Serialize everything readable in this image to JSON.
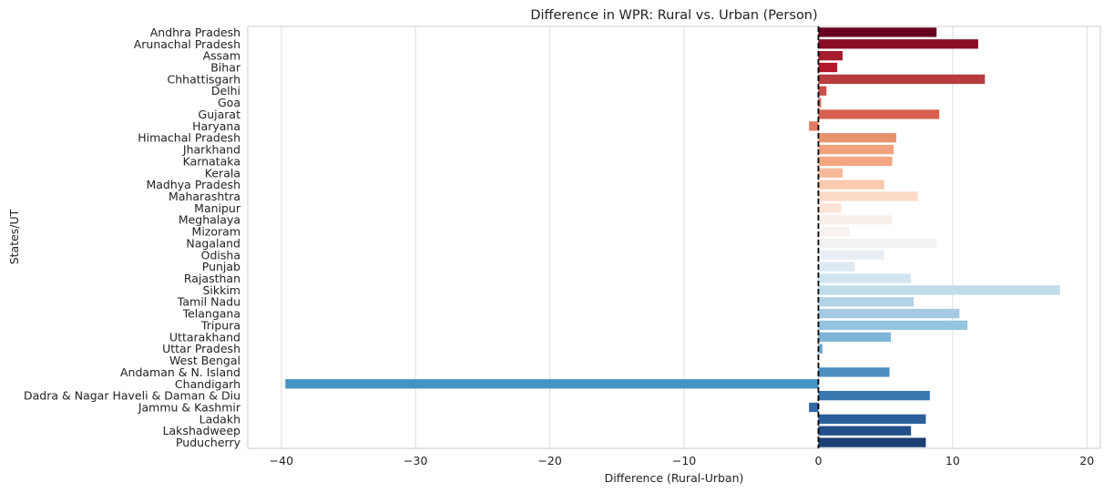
{
  "chart_data": {
    "type": "bar",
    "orientation": "horizontal",
    "title": "Difference in WPR: Rural vs. Urban (Person)",
    "xlabel": "Difference (Rural-Urban)",
    "ylabel": "States/UT",
    "xlim": [
      -42.5,
      21
    ],
    "xticks": [
      -40,
      -30,
      -20,
      -10,
      0,
      10,
      20
    ],
    "xtick_labels": [
      "−40",
      "−30",
      "−20",
      "−10",
      "0",
      "10",
      "20"
    ],
    "grid": "vertical",
    "reference_line": {
      "x": 0,
      "style": "dashed",
      "color": "#000000"
    },
    "colormap": "RdBu",
    "categories": [
      "Andhra Pradesh",
      "Arunachal Pradesh",
      "Assam",
      "Bihar",
      "Chhattisgarh",
      "Delhi",
      "Goa",
      "Gujarat",
      "Haryana",
      "Himachal Pradesh",
      "Jharkhand",
      "Karnataka",
      "Kerala",
      "Madhya Pradesh",
      "Maharashtra",
      "Manipur",
      "Meghalaya",
      "Mizoram",
      "Nagaland",
      "Odisha",
      "Punjab",
      "Rajasthan",
      "Sikkim",
      "Tamil Nadu",
      "Telangana",
      "Tripura",
      "Uttarakhand",
      "Uttar Pradesh",
      "West Bengal",
      "Andaman & N. Island",
      "Chandigarh",
      "Dadra & Nagar Haveli & Daman & Diu",
      "Jammu & Kashmir",
      "Ladakh",
      "Lakshadweep",
      "Puducherry"
    ],
    "values": [
      8.8,
      11.9,
      1.8,
      1.4,
      12.4,
      0.6,
      0.2,
      9.0,
      -0.7,
      5.8,
      5.6,
      5.5,
      1.8,
      4.9,
      7.4,
      1.7,
      5.5,
      2.3,
      8.8,
      4.9,
      2.7,
      6.9,
      18.0,
      7.1,
      10.5,
      11.1,
      5.4,
      0.3,
      0.0,
      5.3,
      -39.7,
      8.3,
      -0.7,
      8.0,
      6.9,
      8.0
    ],
    "colors": [
      "#67001f",
      "#8a0b25",
      "#a51c2e",
      "#b2182b",
      "#b93b3f",
      "#c65149",
      "#d06451",
      "#d6604d",
      "#e27c61",
      "#e8926f",
      "#f0a17e",
      "#f4a582",
      "#f7bb9c",
      "#f9c9b0",
      "#fbdac6",
      "#fde4d6",
      "#f8efea",
      "#f7f1ef",
      "#f2f2f2",
      "#e8eef4",
      "#dde9f2",
      "#d1e5f0",
      "#c0dbea",
      "#b2d3e6",
      "#a4cbe2",
      "#92c5de",
      "#7fb5d6",
      "#6aa8cf",
      "#589bc7",
      "#4d8fc2",
      "#4393c3",
      "#3a77b1",
      "#2f67a3",
      "#2a5f9c",
      "#234f8a",
      "#1c3f73"
    ]
  }
}
